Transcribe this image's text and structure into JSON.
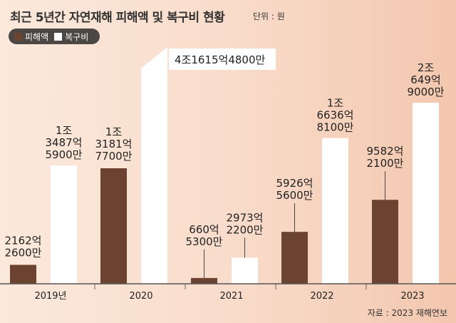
{
  "header": {
    "title": "최근 5년간 자연재해 피해액 및 복구비 현황",
    "unit": "단위 : 원"
  },
  "legend": {
    "items": [
      {
        "label": "피해액",
        "color": "#6b4330"
      },
      {
        "label": "복구비",
        "color": "#ffffff"
      }
    ]
  },
  "source": "자료 : 2023 재해연보",
  "chart_data": {
    "type": "bar",
    "title": "최근 5년간 자연재해 피해액 및 복구비 현황",
    "unit": "원",
    "categories": [
      "2019년",
      "2020",
      "2021",
      "2022",
      "2023"
    ],
    "series": [
      {
        "name": "피해액",
        "color": "#6b4330",
        "values": [
          216226000000,
          1318177000000,
          66053000000,
          592656000000,
          958221000000
        ],
        "labels": [
          [
            "2162억",
            "2600만"
          ],
          [
            "1조",
            "3181억",
            "7700만"
          ],
          [
            "660억",
            "5300만"
          ],
          [
            "5926억",
            "5600만"
          ],
          [
            "9582억",
            "2100만"
          ]
        ]
      },
      {
        "name": "복구비",
        "color": "#ffffff",
        "values": [
          1348759000000,
          4161548000000,
          297322000000,
          1663681000000,
          2064990000000
        ],
        "labels": [
          [
            "1조",
            "3487억",
            "5900만"
          ],
          [
            "4조1615억4800만"
          ],
          [
            "2973억",
            "2200만"
          ],
          [
            "1조",
            "6636억",
            "8100만"
          ],
          [
            "2조",
            "649억",
            "9000만"
          ]
        ],
        "broken": [
          false,
          true,
          false,
          false,
          false
        ]
      }
    ]
  }
}
